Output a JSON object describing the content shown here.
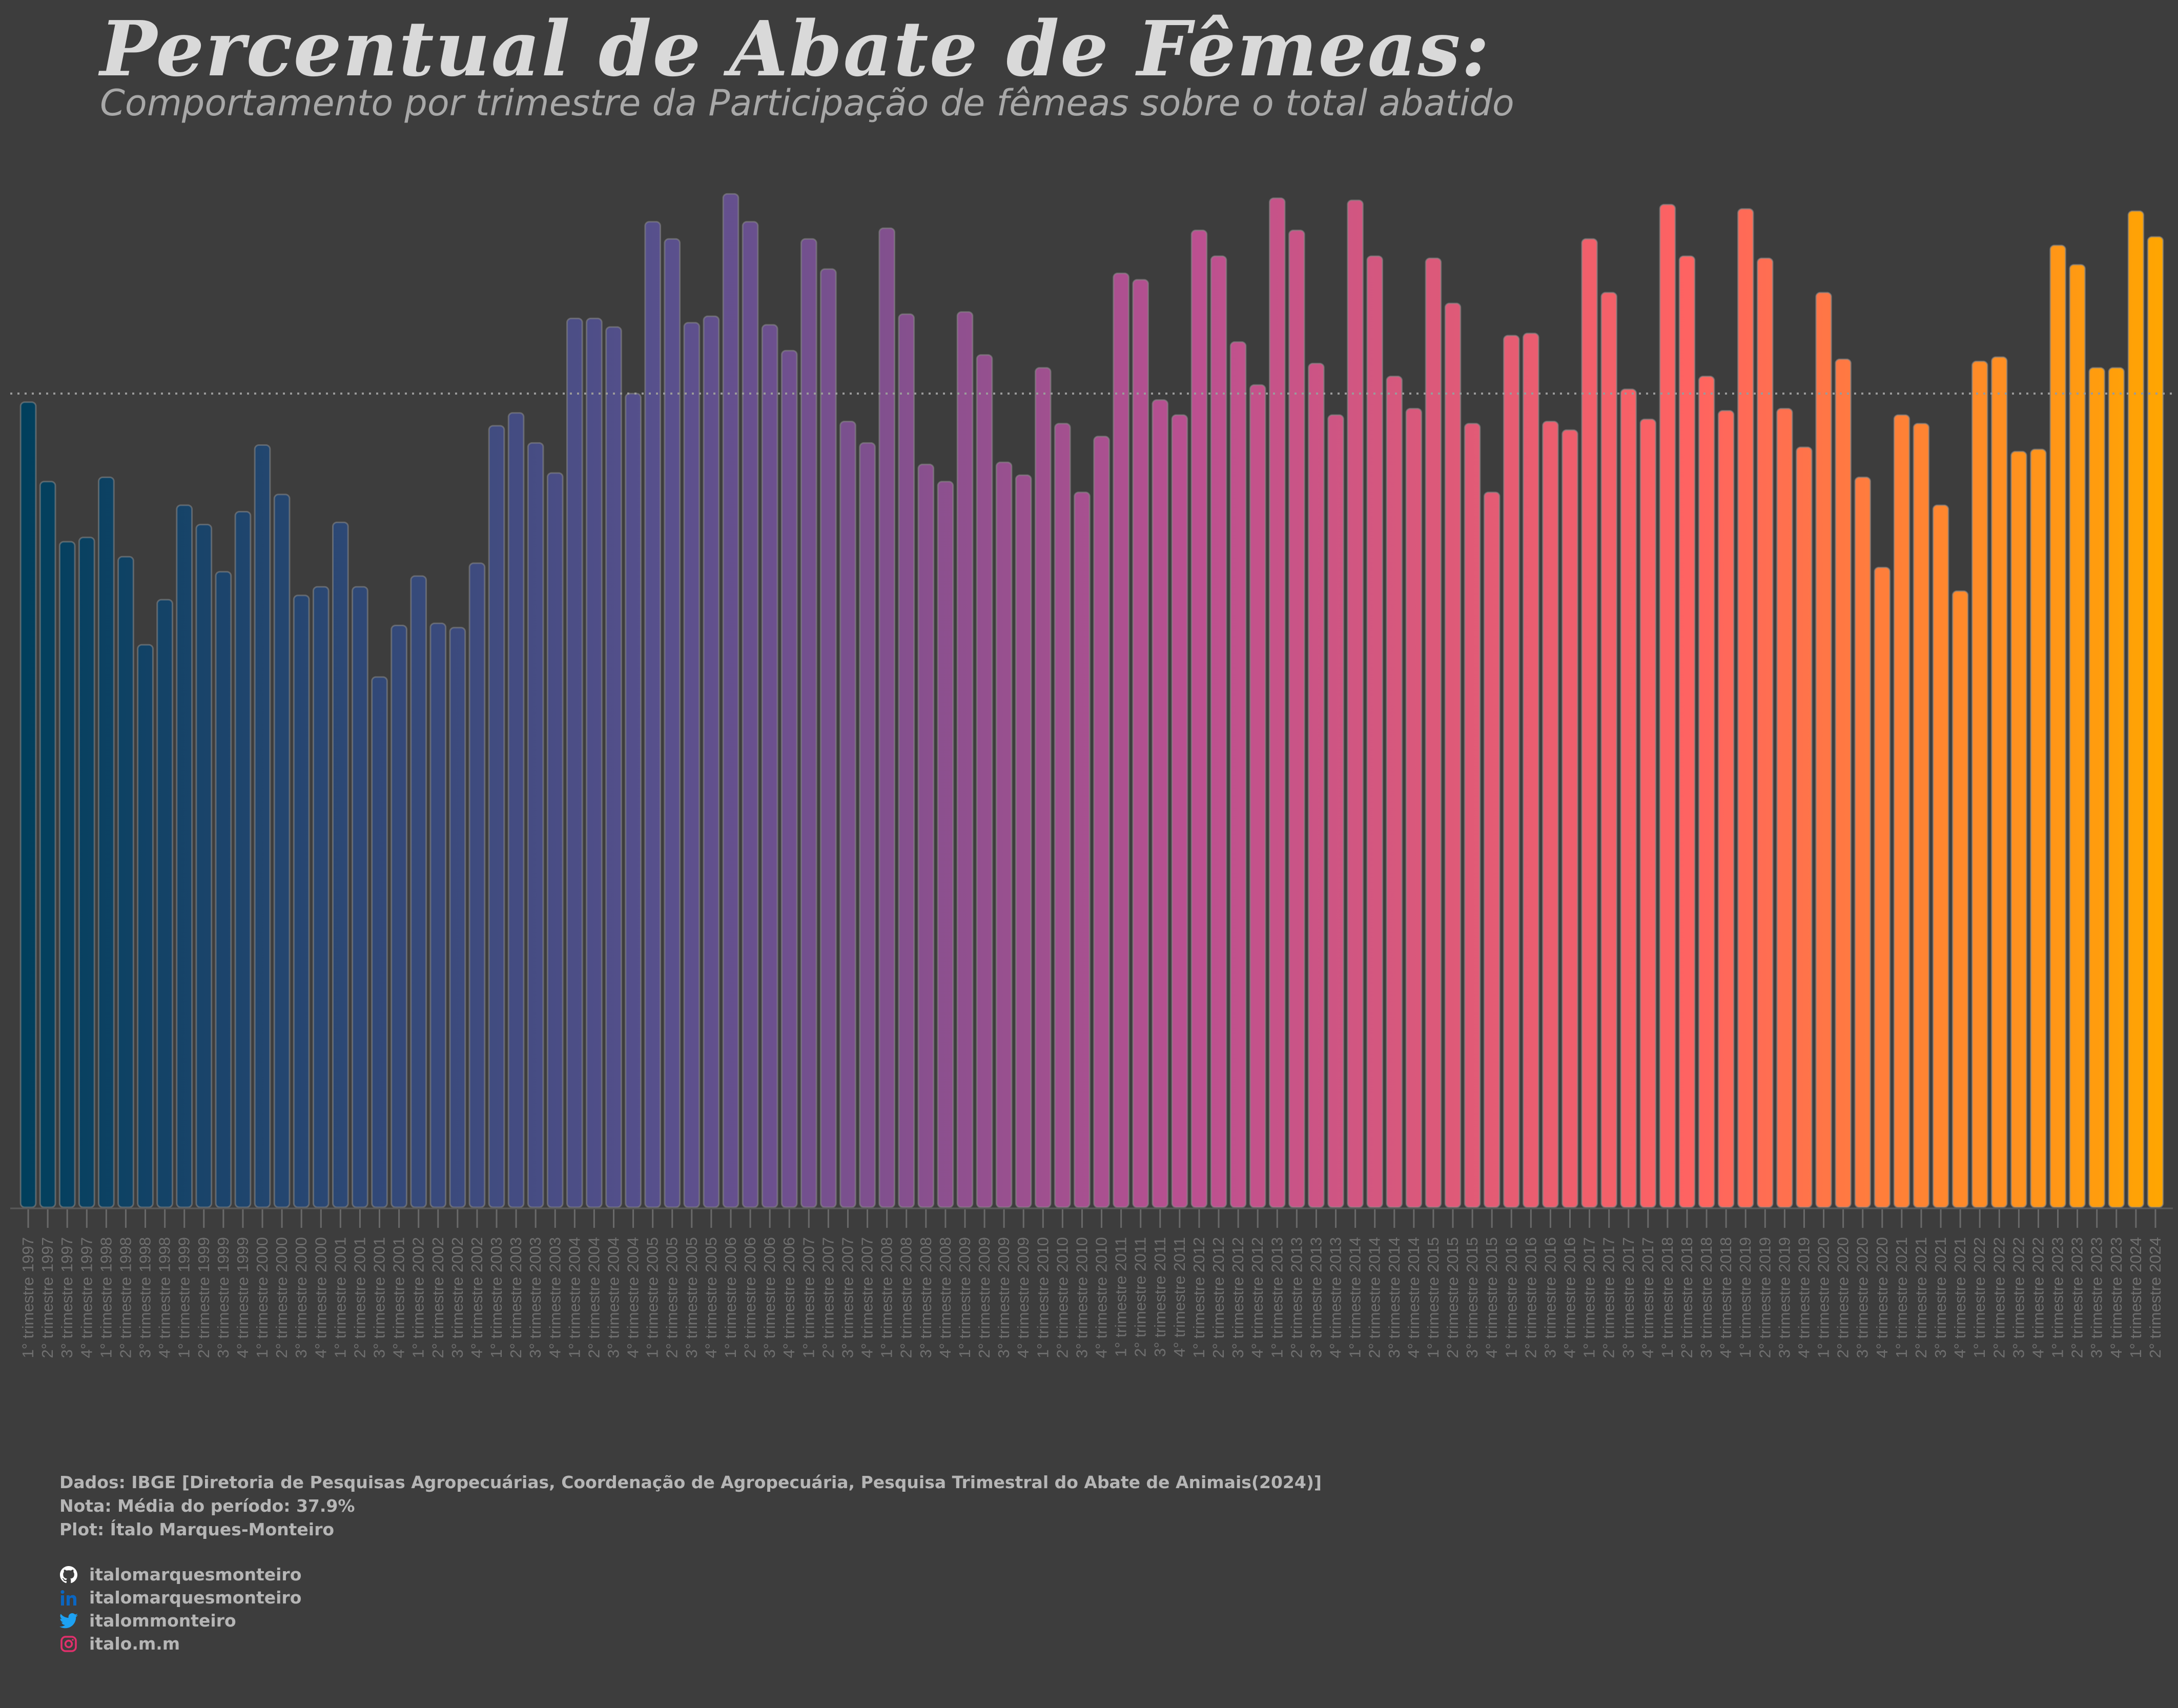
{
  "title": "Percentual de Abate de Fêmeas:",
  "subtitle": "Comportamento por trimestre da Participação de fêmeas sobre o total abatido",
  "caption": {
    "source": "Dados: IBGE [Diretoria de Pesquisas Agropecuárias, Coordenação de Agropecuária, Pesquisa Trimestral do Abate de Animais(2024)]",
    "note": "Nota: Média do período: 37.9%",
    "plot": "Plot: Ítalo Marques-Monteiro"
  },
  "social": {
    "github": "italomarquesmonteiro",
    "linkedin": "italomarquesmonteiro",
    "twitter": "italommonteiro",
    "instagram": "italo.m.m"
  },
  "colors": {
    "background": "#3d3d3d",
    "gradient_start": "#003f5c",
    "gradient_mid1": "#58508d",
    "gradient_mid2": "#bc5090",
    "gradient_mid3": "#ff6361",
    "gradient_end": "#ffa600",
    "mean_line": "#9a9a9a",
    "github": "#ffffff",
    "linkedin": "#0a66c2",
    "twitter": "#1da1f2",
    "instagram": "#e1306c"
  },
  "chart_data": {
    "type": "bar",
    "title": "Percentual de Abate de Fêmeas:",
    "subtitle": "Comportamento por trimestre da Participação de fêmeas sobre o total abatido",
    "xlabel": "",
    "ylabel": "",
    "ylim": [
      0,
      50
    ],
    "grid": false,
    "mean_line": 37.9,
    "categories": [
      "1° trimestre 1997",
      "2° trimestre 1997",
      "3° trimestre 1997",
      "4° trimestre 1997",
      "1° trimestre 1998",
      "2° trimestre 1998",
      "3° trimestre 1998",
      "4° trimestre 1998",
      "1° trimestre 1999",
      "2° trimestre 1999",
      "3° trimestre 1999",
      "4° trimestre 1999",
      "1° trimestre 2000",
      "2° trimestre 2000",
      "3° trimestre 2000",
      "4° trimestre 2000",
      "1° trimestre 2001",
      "2° trimestre 2001",
      "3° trimestre 2001",
      "4° trimestre 2001",
      "1° trimestre 2002",
      "2° trimestre 2002",
      "3° trimestre 2002",
      "4° trimestre 2002",
      "1° trimestre 2003",
      "2° trimestre 2003",
      "3° trimestre 2003",
      "4° trimestre 2003",
      "1° trimestre 2004",
      "2° trimestre 2004",
      "3° trimestre 2004",
      "4° trimestre 2004",
      "1° trimestre 2005",
      "2° trimestre 2005",
      "3° trimestre 2005",
      "4° trimestre 2005",
      "1° trimestre 2006",
      "2° trimestre 2006",
      "3° trimestre 2006",
      "4° trimestre 2006",
      "1° trimestre 2007",
      "2° trimestre 2007",
      "3° trimestre 2007",
      "4° trimestre 2007",
      "1° trimestre 2008",
      "2° trimestre 2008",
      "3° trimestre 2008",
      "4° trimestre 2008",
      "1° trimestre 2009",
      "2° trimestre 2009",
      "3° trimestre 2009",
      "4° trimestre 2009",
      "1° trimestre 2010",
      "2° trimestre 2010",
      "3° trimestre 2010",
      "4° trimestre 2010",
      "1° trimestre 2011",
      "2° trimestre 2011",
      "3° trimestre 2011",
      "4° trimestre 2011",
      "1° trimestre 2012",
      "2° trimestre 2012",
      "3° trimestre 2012",
      "4° trimestre 2012",
      "1° trimestre 2013",
      "2° trimestre 2013",
      "3° trimestre 2013",
      "4° trimestre 2013",
      "1° trimestre 2014",
      "2° trimestre 2014",
      "3° trimestre 2014",
      "4° trimestre 2014",
      "1° trimestre 2015",
      "2° trimestre 2015",
      "3° trimestre 2015",
      "4° trimestre 2015",
      "1° trimestre 2016",
      "2° trimestre 2016",
      "3° trimestre 2016",
      "4° trimestre 2016",
      "1° trimestre 2017",
      "2° trimestre 2017",
      "3° trimestre 2017",
      "4° trimestre 2017",
      "1° trimestre 2018",
      "2° trimestre 2018",
      "3° trimestre 2018",
      "4° trimestre 2018",
      "1° trimestre 2019",
      "2° trimestre 2019",
      "3° trimestre 2019",
      "4° trimestre 2019",
      "1° trimestre 2020",
      "2° trimestre 2020",
      "3° trimestre 2020",
      "4° trimestre 2020",
      "1° trimestre 2021",
      "2° trimestre 2021",
      "3° trimestre 2021",
      "4° trimestre 2021",
      "1° trimestre 2022",
      "2° trimestre 2022",
      "3° trimestre 2022",
      "4° trimestre 2022",
      "1° trimestre 2023",
      "2° trimestre 2023",
      "3° trimestre 2023",
      "4° trimestre 2023",
      "1° trimestre 2024",
      "2° trimestre 2024"
    ],
    "values": [
      37.5,
      33.8,
      31.0,
      31.2,
      34.0,
      30.3,
      26.2,
      28.3,
      32.7,
      31.8,
      29.6,
      32.4,
      35.5,
      33.2,
      28.5,
      28.9,
      31.9,
      28.9,
      24.7,
      27.1,
      29.4,
      27.2,
      27.0,
      30.0,
      36.4,
      37.0,
      35.6,
      34.2,
      41.4,
      41.4,
      41.0,
      37.9,
      45.9,
      45.1,
      41.2,
      41.5,
      47.2,
      45.9,
      41.1,
      39.9,
      45.1,
      43.7,
      36.6,
      35.6,
      45.6,
      41.6,
      34.6,
      33.8,
      41.7,
      39.7,
      34.7,
      34.1,
      39.1,
      36.5,
      33.3,
      35.9,
      43.5,
      43.2,
      37.6,
      36.9,
      45.5,
      44.3,
      40.3,
      38.3,
      47.0,
      45.5,
      39.3,
      36.9,
      46.9,
      44.3,
      38.7,
      37.2,
      44.2,
      42.1,
      36.5,
      33.3,
      40.6,
      40.7,
      36.6,
      36.2,
      45.1,
      42.6,
      38.1,
      36.7,
      46.7,
      44.3,
      38.7,
      37.1,
      46.5,
      44.2,
      37.2,
      35.4,
      42.6,
      39.5,
      34.0,
      29.8,
      36.9,
      36.5,
      32.7,
      28.7,
      39.4,
      39.6,
      35.2,
      35.3,
      44.8,
      43.9,
      39.1,
      39.1,
      46.4,
      45.2
    ]
  }
}
